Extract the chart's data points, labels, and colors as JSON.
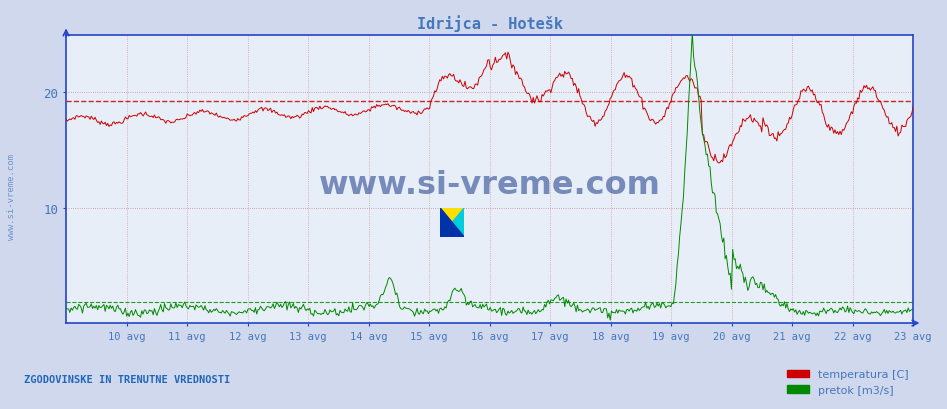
{
  "title": "Idrijca - Hotešk",
  "background_color": "#d0d8ee",
  "plot_bg_color": "#e8eef8",
  "text_color": "#4477bb",
  "axis_color": "#2244cc",
  "grid_h_color": "#cc8888",
  "grid_v_color": "#cc8888",
  "temp_color": "#cc0000",
  "flow_color": "#008800",
  "avg_temp_color": "#cc0000",
  "avg_flow_color": "#008800",
  "avg_temp_val": 19.3,
  "avg_flow_val": 1.8,
  "ylim": [
    0,
    25
  ],
  "yticks": [
    10,
    20
  ],
  "xlim": [
    0,
    14
  ],
  "x_tick_positions": [
    1,
    2,
    3,
    4,
    5,
    6,
    7,
    8,
    9,
    10,
    11,
    12,
    13,
    14
  ],
  "x_tick_labels": [
    "10 avg",
    "11 avg",
    "12 avg",
    "13 avg",
    "14 avg",
    "15 avg",
    "16 avg",
    "17 avg",
    "18 avg",
    "19 avg",
    "20 avg",
    "21 avg",
    "22 avg",
    "23 avg"
  ],
  "footer_text": "ZGODOVINSKE IN TRENUTNE VREDNOSTI",
  "footer_color": "#2266bb",
  "watermark": "www.si-vreme.com",
  "watermark_color": "#1a3a8a",
  "legend_temp": "temperatura [C]",
  "legend_flow": "pretok [m3/s]"
}
